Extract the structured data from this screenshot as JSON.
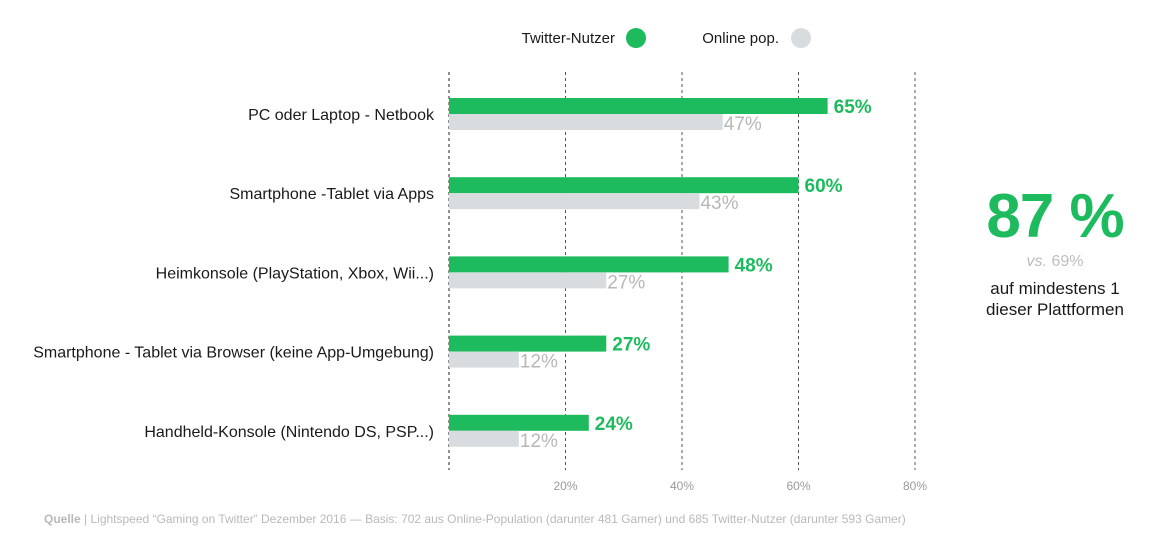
{
  "chart_data": {
    "type": "bar",
    "orientation": "horizontal",
    "categories": [
      "PC oder Laptop - Netbook",
      "Smartphone -Tablet via Apps",
      "Heimkonsole (PlayStation, Xbox, Wii...)",
      "Smartphone - Tablet via Browser (keine App-Umgebung)",
      "Handheld-Konsole (Nintendo DS, PSP...)"
    ],
    "series": [
      {
        "name": "Twitter-Nutzer",
        "values": [
          65,
          60,
          48,
          27,
          24
        ],
        "labels": [
          "65%",
          "60%",
          "48%",
          "27%",
          "24%"
        ],
        "color": "#1dba5e"
      },
      {
        "name": "Online pop.",
        "values": [
          47,
          43,
          27,
          12,
          12
        ],
        "labels": [
          "47%",
          "43%",
          "27%",
          "12%",
          "12%"
        ],
        "color": "#d8dcdf"
      }
    ],
    "xlim": [
      0,
      80
    ],
    "ticks": [
      20,
      40,
      60,
      80
    ],
    "tick_labels": [
      "20%",
      "40%",
      "60%",
      "80%"
    ],
    "grid": "dashed vertical",
    "legend_position": "top-center"
  },
  "callout": {
    "value": "87 %",
    "vs_prefix": "vs.",
    "vs_value": "69%",
    "text": "auf mindestens 1 dieser Plattformen"
  },
  "source": {
    "label": "Quelle",
    "separator": " | ",
    "text": "Lightspeed “Gaming on Twitter” Dezember 2016 — Basis: 702 aus Online-Population (darunter 481 Gamer) und 685 Twitter-Nutzer (darunter 593 Gamer)"
  }
}
